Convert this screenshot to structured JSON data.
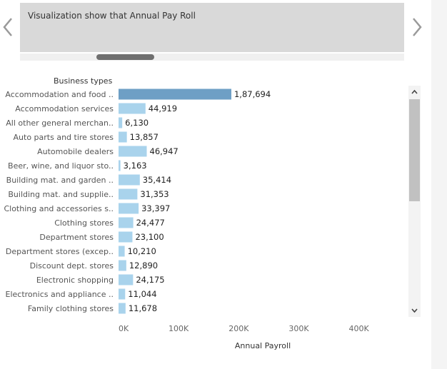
{
  "caption": "Visualization show that Annual Pay Roll",
  "icons": {
    "prev": "chevron-left-icon",
    "next": "chevron-right-icon",
    "scroll_up": "caret-up-icon",
    "scroll_down": "caret-down-icon"
  },
  "colors": {
    "bar": "#a9d3ec",
    "bar_highlight": "#6e9fc5",
    "arrow": "#9a9a9a",
    "text": "#555555"
  },
  "chart_data": {
    "type": "bar",
    "orientation": "horizontal",
    "xlabel": "Annual Payroll",
    "ylabel": "Business types",
    "xlim": [
      0,
      480000
    ],
    "xticks": [
      0,
      100000,
      200000,
      300000,
      400000
    ],
    "xtick_labels": [
      "0K",
      "100K",
      "200K",
      "300K",
      "400K"
    ],
    "categories": [
      "Accommodation and food ..",
      "Accommodation services",
      "All other general merchan..",
      "Auto parts and tire stores",
      "Automobile dealers",
      "Beer, wine, and liquor sto..",
      "Building mat. and garden ..",
      "Building mat. and supplie..",
      "Clothing and accessories s..",
      "Clothing stores",
      "Department stores",
      "Department stores (excep..",
      "Discount dept. stores",
      "Electronic shopping",
      "Electronics and appliance ..",
      "Family clothing stores"
    ],
    "values": [
      187694,
      44919,
      6130,
      13857,
      46947,
      3163,
      35414,
      31353,
      33397,
      24477,
      23100,
      10210,
      12890,
      24175,
      11044,
      11678
    ],
    "value_labels": [
      "1,87,694",
      "44,919",
      "6,130",
      "13,857",
      "46,947",
      "3,163",
      "35,414",
      "31,353",
      "33,397",
      "24,477",
      "23,100",
      "10,210",
      "12,890",
      "24,175",
      "11,044",
      "11,678"
    ],
    "highlighted_index": 0
  }
}
